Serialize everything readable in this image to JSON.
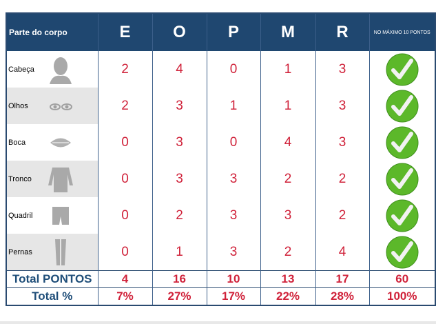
{
  "header": {
    "part_label": "Parte do corpo",
    "columns": [
      "E",
      "O",
      "P",
      "M",
      "R"
    ],
    "max_label": "NO MÁXIMO 10 PONTOS"
  },
  "rows": [
    {
      "label": "Cabeça",
      "icon": "head-icon",
      "values": [
        "2",
        "4",
        "0",
        "1",
        "3"
      ],
      "status": "check-icon"
    },
    {
      "label": "Olhos",
      "icon": "eyes-icon",
      "values": [
        "2",
        "3",
        "1",
        "1",
        "3"
      ],
      "status": "check-icon"
    },
    {
      "label": "Boca",
      "icon": "mouth-icon",
      "values": [
        "0",
        "3",
        "0",
        "4",
        "3"
      ],
      "status": "check-icon"
    },
    {
      "label": "Tronco",
      "icon": "torso-icon",
      "values": [
        "0",
        "3",
        "3",
        "2",
        "2"
      ],
      "status": "check-icon"
    },
    {
      "label": "Quadril",
      "icon": "hip-icon",
      "values": [
        "0",
        "2",
        "3",
        "3",
        "2"
      ],
      "status": "check-icon"
    },
    {
      "label": "Pernas",
      "icon": "legs-icon",
      "values": [
        "0",
        "1",
        "3",
        "2",
        "4"
      ],
      "status": "check-icon"
    }
  ],
  "totals": {
    "label": "Total PONTOS",
    "values": [
      "4",
      "16",
      "10",
      "13",
      "17",
      "60"
    ]
  },
  "percent": {
    "label": "Total %",
    "values": [
      "7%",
      "27%",
      "17%",
      "22%",
      "28%",
      "100%"
    ]
  },
  "colors": {
    "header": "#1f4770",
    "value": "#d0223a",
    "total_label": "#1f4e79",
    "check": "#5cb82a"
  }
}
